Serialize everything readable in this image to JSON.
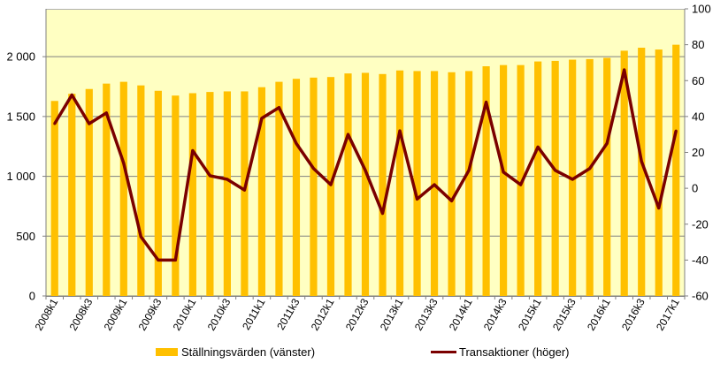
{
  "chart_data": {
    "type": "bar",
    "colors": {
      "plot_background": "#FFFFC2",
      "bar": "#FFC000",
      "line": "#7B0000",
      "grid": "#808080"
    },
    "categories": [
      "2008k1",
      "2008k2",
      "2008k3",
      "2008k4",
      "2009k1",
      "2009k2",
      "2009k3",
      "2009k4",
      "2010k1",
      "2010k2",
      "2010k3",
      "2010k4",
      "2011k1",
      "2011k2",
      "2011k3",
      "2011k4",
      "2012k1",
      "2012k2",
      "2012k3",
      "2012k4",
      "2013k1",
      "2013k2",
      "2013k3",
      "2013k4",
      "2014k1",
      "2014k2",
      "2014k3",
      "2014k4",
      "2015k1",
      "2015k2",
      "2015k3",
      "2015k4",
      "2016k1",
      "2016k2",
      "2016k3",
      "2016k4",
      "2017k1"
    ],
    "x_tick_labels": [
      "2008k1",
      "2008k3",
      "2009k1",
      "2009k3",
      "2010k1",
      "2010k3",
      "2011k1",
      "2011k3",
      "2012k1",
      "2012k3",
      "2013k1",
      "2013k3",
      "2014k1",
      "2014k3",
      "2015k1",
      "2015k3",
      "2016k1",
      "2016k3",
      "2017k1"
    ],
    "y_left": {
      "ylim": [
        0,
        2400
      ],
      "ticks": [
        0,
        500,
        1000,
        1500,
        2000
      ],
      "tick_labels": [
        "0",
        "500",
        "1 000",
        "1 500",
        "2 000"
      ]
    },
    "y_right": {
      "ylim": [
        -60,
        100
      ],
      "ticks": [
        -60,
        -40,
        -20,
        0,
        20,
        40,
        60,
        80,
        100
      ],
      "tick_labels": [
        "-60",
        "-40",
        "-20",
        "0",
        "20",
        "40",
        "60",
        "80",
        "100"
      ]
    },
    "series": [
      {
        "name": "Ställningsvärden (vänster)",
        "type": "bar",
        "axis": "left",
        "values": [
          1630,
          1690,
          1730,
          1775,
          1790,
          1760,
          1715,
          1675,
          1695,
          1705,
          1710,
          1710,
          1745,
          1790,
          1815,
          1825,
          1830,
          1860,
          1865,
          1855,
          1885,
          1880,
          1880,
          1870,
          1880,
          1920,
          1930,
          1930,
          1960,
          1965,
          1975,
          1980,
          1990,
          2050,
          2075,
          2060,
          2100
        ]
      },
      {
        "name": "Transaktioner (höger)",
        "type": "line",
        "axis": "right",
        "values": [
          36,
          52,
          36,
          42,
          14,
          -27,
          -40,
          -40,
          21,
          7,
          5,
          -1,
          39,
          45,
          25,
          11,
          2,
          30,
          10,
          -14,
          32,
          -6,
          2,
          -7,
          10,
          48,
          9,
          2,
          23,
          10,
          5,
          11,
          25,
          66,
          15,
          -11,
          32
        ]
      }
    ],
    "legend": {
      "placement": "bottom"
    },
    "grid": {
      "horizontal": true,
      "vertical": false
    }
  }
}
